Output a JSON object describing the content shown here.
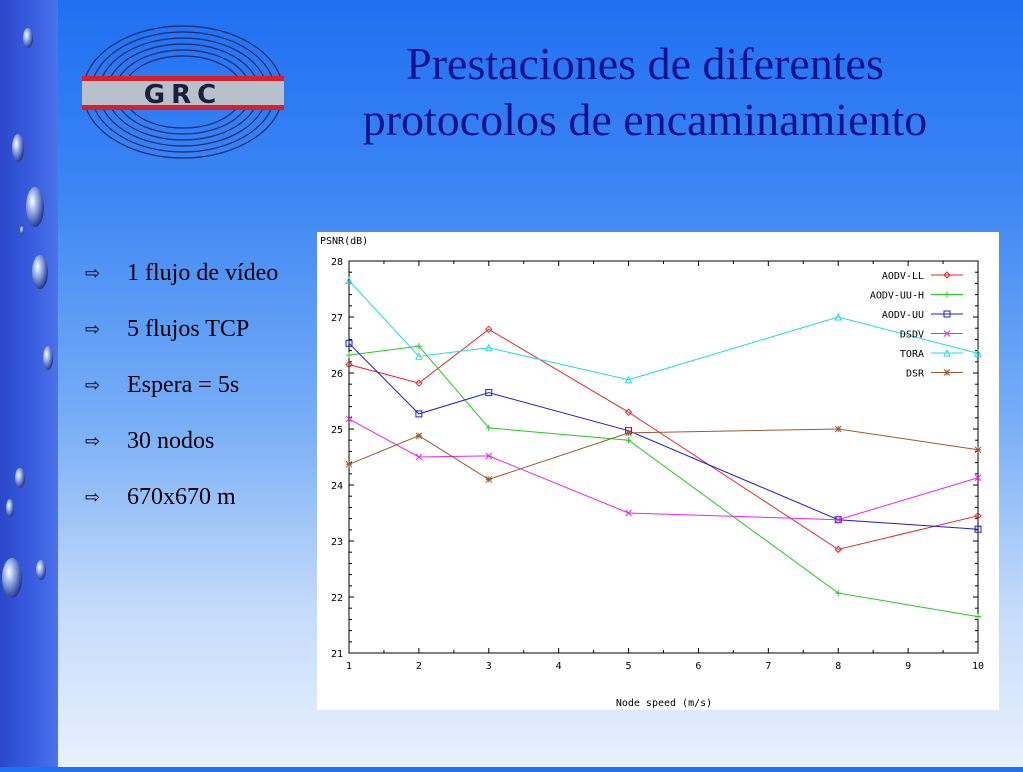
{
  "slide": {
    "title_line1": "Prestaciones de diferentes",
    "title_line2": "protocolos de encaminamiento",
    "title_color": "#12138c"
  },
  "logo": {
    "text": "GRC",
    "accent": "#d8202a"
  },
  "bullets": [
    {
      "icon": "hollow-arrow-icon",
      "text": "1 flujo de vídeo"
    },
    {
      "icon": "hollow-arrow-icon",
      "text": "5 flujos TCP"
    },
    {
      "icon": "hollow-arrow-icon",
      "text": "Espera = 5s"
    },
    {
      "icon": "hollow-arrow-icon",
      "text": "30 nodos"
    },
    {
      "icon": "hollow-arrow-icon",
      "text": "670x670 m"
    }
  ],
  "chart_data": {
    "type": "line",
    "title": "",
    "ylabel": "PSNR(dB)",
    "xlabel": "Node speed (m/s)",
    "xlim": [
      1,
      10
    ],
    "ylim": [
      21,
      28
    ],
    "xticks": [
      1,
      2,
      3,
      4,
      5,
      6,
      7,
      8,
      9,
      10
    ],
    "yticks": [
      21,
      22,
      23,
      24,
      25,
      26,
      27,
      28
    ],
    "grid": false,
    "legend_position": "top-right",
    "x": [
      1,
      2,
      3,
      5,
      8,
      10
    ],
    "series": [
      {
        "name": "AODV-LL",
        "color": "#e8262a",
        "marker": "diamond",
        "values": [
          26.15,
          25.82,
          26.78,
          25.3,
          22.85,
          23.45
        ]
      },
      {
        "name": "AODV-UU-H",
        "color": "#22cc22",
        "marker": "plus",
        "values": [
          26.32,
          26.48,
          25.02,
          24.8,
          22.07,
          21.65
        ]
      },
      {
        "name": "AODV-UU",
        "color": "#1c1ccf",
        "marker": "square",
        "values": [
          26.53,
          25.27,
          25.65,
          24.97,
          23.38,
          23.21
        ]
      },
      {
        "name": "DSDV",
        "color": "#ee22ee",
        "marker": "x",
        "values": [
          25.18,
          24.5,
          24.52,
          23.5,
          23.38,
          24.13
        ]
      },
      {
        "name": "TORA",
        "color": "#22dddd",
        "marker": "triangle",
        "values": [
          27.65,
          26.3,
          26.45,
          25.88,
          27.0,
          26.35
        ]
      },
      {
        "name": "DSR",
        "color": "#9b5a32",
        "marker": "star",
        "values": [
          24.37,
          24.88,
          24.1,
          24.93,
          25.0,
          24.63
        ]
      }
    ]
  }
}
